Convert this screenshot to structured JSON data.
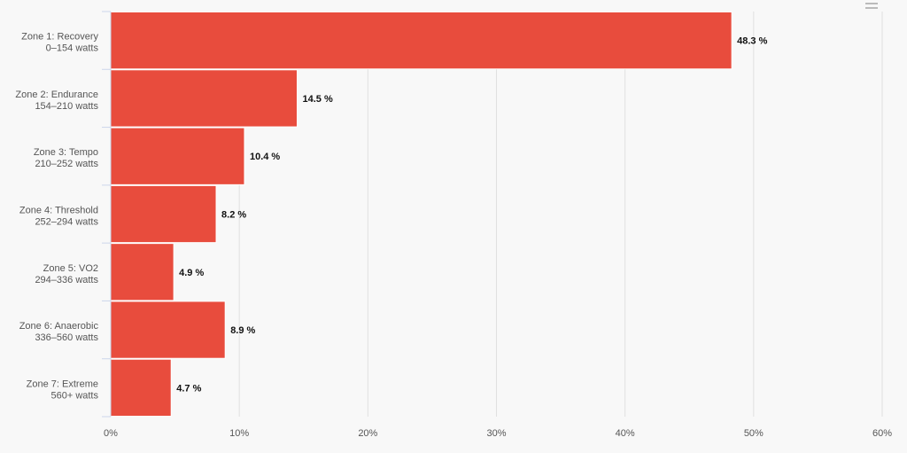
{
  "menu": {
    "icon": "hamburger-menu-icon"
  },
  "chart_data": {
    "type": "bar",
    "orientation": "horizontal",
    "categories": [
      [
        "Zone 1: Recovery",
        "0–154 watts"
      ],
      [
        "Zone 2: Endurance",
        "154–210 watts"
      ],
      [
        "Zone 3: Tempo",
        "210–252 watts"
      ],
      [
        "Zone 4: Threshold",
        "252–294 watts"
      ],
      [
        "Zone 5: VO2",
        "294–336 watts"
      ],
      [
        "Zone 6: Anaerobic",
        "336–560 watts"
      ],
      [
        "Zone 7: Extreme",
        "560+ watts"
      ]
    ],
    "values": [
      48.3,
      14.5,
      10.4,
      8.2,
      4.9,
      8.9,
      4.7
    ],
    "data_labels": [
      "48.3 %",
      "14.5 %",
      "10.4 %",
      "8.2 %",
      "4.9 %",
      "8.9 %",
      "4.7 %"
    ],
    "xlim": [
      0,
      60
    ],
    "xticks": [
      0,
      10,
      20,
      30,
      40,
      50,
      60
    ],
    "xtick_labels": [
      "0%",
      "10%",
      "20%",
      "30%",
      "40%",
      "50%",
      "60%"
    ],
    "grid": true,
    "legend": false,
    "colors": {
      "bar": "#e84c3d",
      "grid": "#e0e0e0",
      "axis": "#ccd6eb",
      "background": "#f8f8f8"
    }
  }
}
